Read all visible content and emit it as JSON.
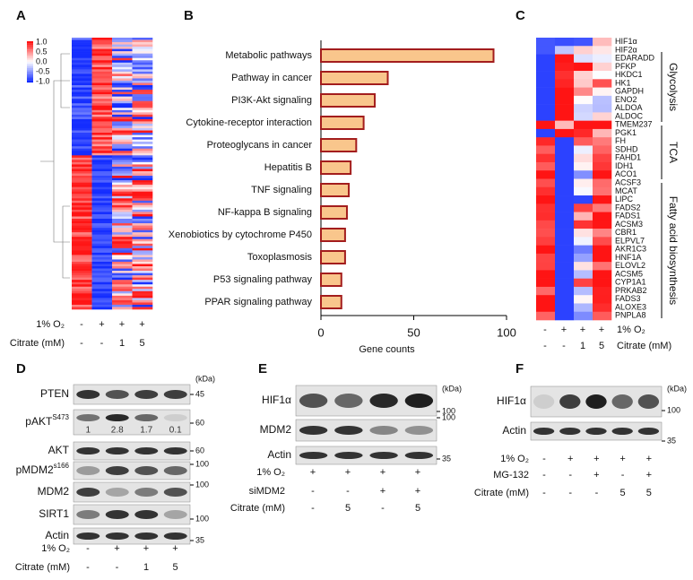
{
  "panels": {
    "A": {
      "label": "A",
      "colorbar": [
        "1.0",
        "0.5",
        "0.0",
        "-0.5",
        "-1.0"
      ],
      "conditions": [
        {
          "name": "1% O₂",
          "values": [
            "-",
            "+",
            "+",
            "+"
          ]
        },
        {
          "name": "Citrate (mM)",
          "values": [
            "-",
            "-",
            "1",
            "5"
          ]
        }
      ]
    },
    "C": {
      "label": "C",
      "genes": [
        "HIF1α",
        "HIF2α",
        "EDARADD",
        "PFKP",
        "HKDC1",
        "HK1",
        "GAPDH",
        "ENO2",
        "ALDOA",
        "ALDOC",
        "TMEM237",
        "PGK1",
        "FH",
        "SDHD",
        "FAHD1",
        "IDH1",
        "ACO1",
        "ACSF3",
        "MCAT",
        "LIPC",
        "FADS2",
        "FADS1",
        "ACSM3",
        "CBR1",
        "ELPVL7",
        "AKR1C3",
        "HNF1A",
        "ELOVL2",
        "ACSM5",
        "CYP1A1",
        "PRKAB2",
        "FADS3",
        "ALOXE3",
        "PNPLA8"
      ],
      "groups": [
        "Glycolysis",
        "TCA",
        "Fatty acid biosynthesis"
      ],
      "conditions": [
        {
          "name": "1% O₂",
          "values": [
            "-",
            "+",
            "+",
            "+"
          ]
        },
        {
          "name": "Citrate (mM)",
          "values": [
            "-",
            "-",
            "1",
            "5"
          ]
        }
      ]
    },
    "D": {
      "label": "D",
      "unit": "(kDa)",
      "rows": [
        {
          "name": "PTEN",
          "marker": "45"
        },
        {
          "name": "pAKT",
          "sup": "S473",
          "marker": "60",
          "quant": [
            "1",
            "2.8",
            "1.7",
            "0.1"
          ]
        },
        {
          "name": "AKT",
          "marker": "60"
        },
        {
          "name": "pMDM2",
          "sup": "s166",
          "marker": "100"
        },
        {
          "name": "MDM2",
          "marker": "100"
        },
        {
          "name": "SIRT1",
          "marker": "100"
        },
        {
          "name": "Actin",
          "marker": "35"
        }
      ],
      "conditions": [
        {
          "name": "1% O₂",
          "values": [
            "-",
            "+",
            "+",
            "+"
          ]
        },
        {
          "name": "Citrate (mM)",
          "values": [
            "-",
            "-",
            "1",
            "5"
          ]
        }
      ]
    },
    "E": {
      "label": "E",
      "unit": "(kDa)",
      "rows": [
        {
          "name": "HIF1α",
          "marker": "100"
        },
        {
          "name": "MDM2",
          "marker": "100"
        },
        {
          "name": "Actin",
          "marker": "35"
        }
      ],
      "conditions": [
        {
          "name": "1% O₂",
          "values": [
            "+",
            "+",
            "+",
            "+"
          ]
        },
        {
          "name": "siMDM2",
          "values": [
            "-",
            "-",
            "+",
            "+"
          ]
        },
        {
          "name": "Citrate (mM)",
          "values": [
            "-",
            "5",
            "-",
            "5"
          ]
        }
      ]
    },
    "F": {
      "label": "F",
      "unit": "(kDa)",
      "rows": [
        {
          "name": "HIF1α",
          "marker": "100"
        },
        {
          "name": "Actin",
          "marker": "35"
        }
      ],
      "conditions": [
        {
          "name": "1% O₂",
          "values": [
            "-",
            "+",
            "+",
            "+",
            "+"
          ]
        },
        {
          "name": "MG-132",
          "values": [
            "-",
            "-",
            "+",
            "-",
            "+"
          ]
        },
        {
          "name": "Citrate (mM)",
          "values": [
            "-",
            "-",
            "-",
            "5",
            "5"
          ]
        }
      ]
    }
  },
  "chart_data": {
    "type": "bar",
    "label": "B",
    "categories": [
      "Metabolic pathways",
      "Pathway in cancer",
      "PI3K-Akt signaling",
      "Cytokine-receptor interaction",
      "Proteoglycans in cancer",
      "Hepatitis B",
      "TNF signaling",
      "NF-kappa B signaling",
      "Xenobiotics by cytochrome P450",
      "Toxoplasmosis",
      "P53 signaling pathway",
      "PPAR signaling pathway"
    ],
    "values": [
      93,
      36,
      29,
      23,
      19,
      16,
      15,
      14,
      13,
      13,
      11,
      11
    ],
    "xlim": [
      0,
      100
    ],
    "xticks": [
      0,
      50,
      100
    ],
    "xlabel": "Gene counts",
    "color": "#f9c68c",
    "edge_color": "#a31d1d"
  }
}
